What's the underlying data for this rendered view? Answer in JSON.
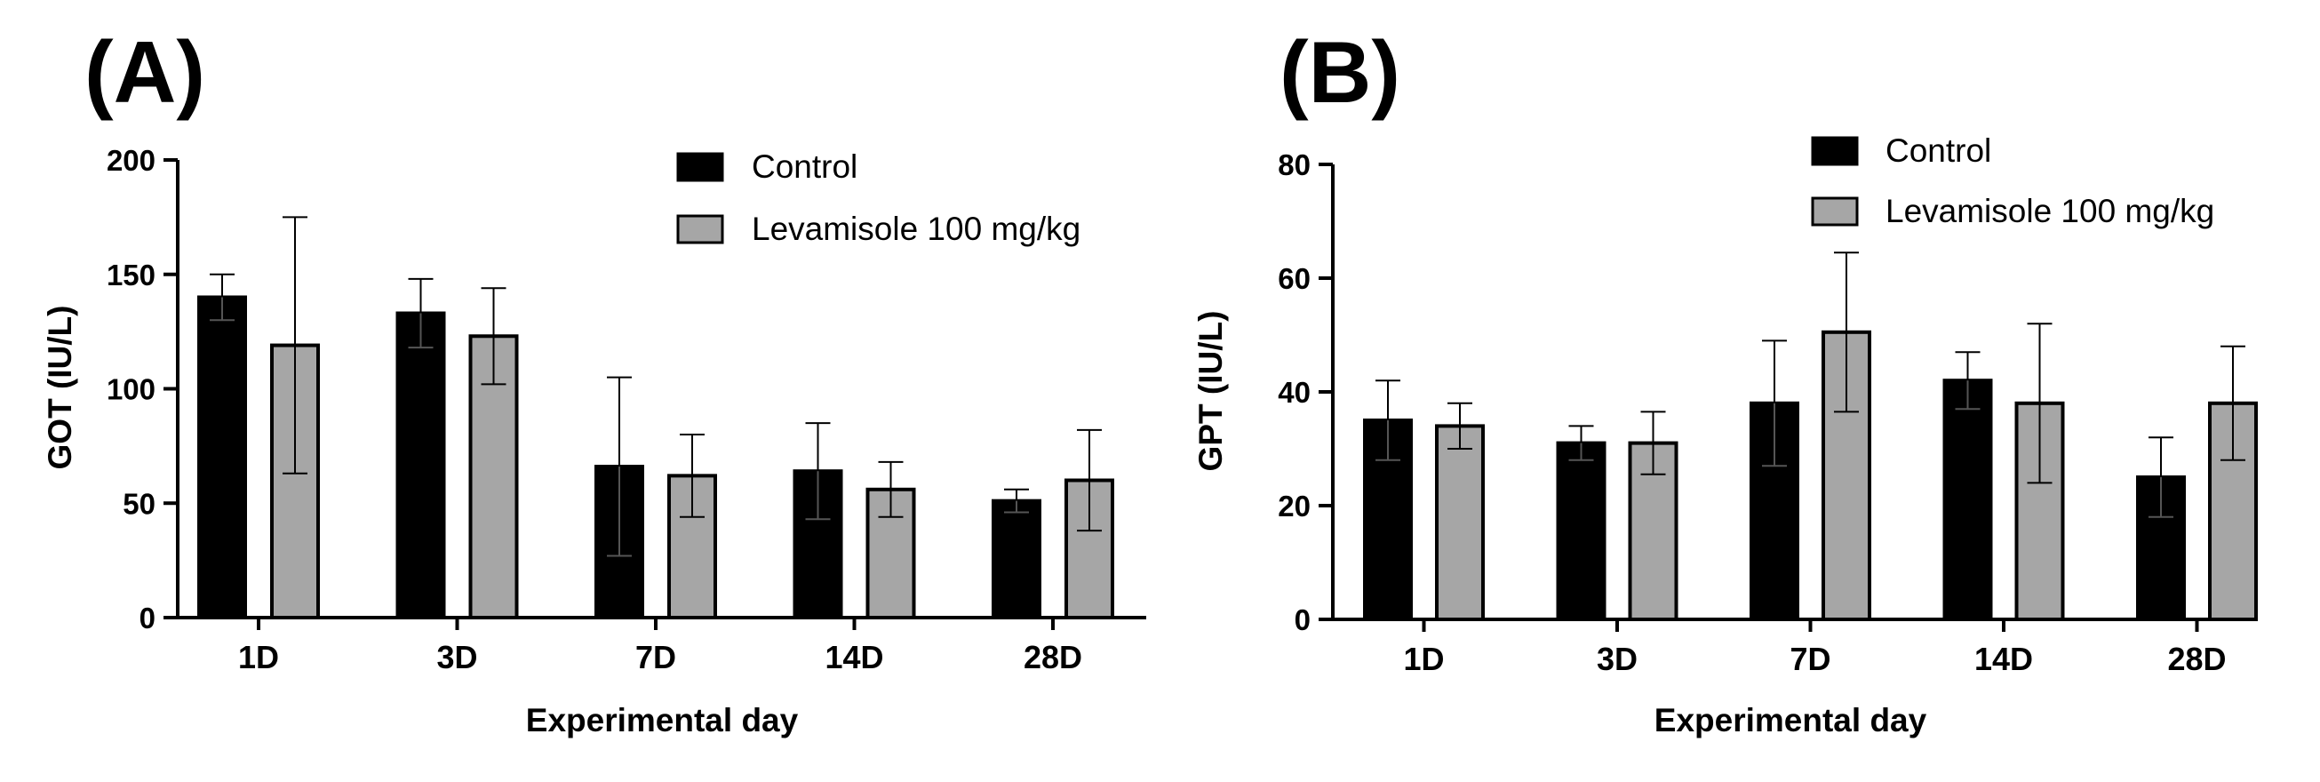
{
  "chart_data": [
    {
      "type": "bar",
      "panel_label": "(A)",
      "categories": [
        "1D",
        "3D",
        "7D",
        "14D",
        "28D"
      ],
      "xlabel": "Experimental day",
      "ylabel": "GOT (IU/L)",
      "ylim": [
        0,
        200
      ],
      "yticks": [
        "0",
        "50",
        "100",
        "150",
        "200"
      ],
      "series": [
        {
          "name": "Control",
          "color": "#000000",
          "values": [
            140,
            133,
            66,
            64,
            51
          ],
          "errors": [
            10,
            15,
            39,
            21,
            5
          ]
        },
        {
          "name": "Levamisole 100 mg/kg",
          "color": "#a6a6a6",
          "values": [
            119,
            123,
            62,
            56,
            60
          ],
          "errors": [
            56,
            21,
            18,
            12,
            22
          ]
        }
      ],
      "legend": "top-right",
      "grid": false
    },
    {
      "type": "bar",
      "panel_label": "(B)",
      "categories": [
        "1D",
        "3D",
        "7D",
        "14D",
        "28D"
      ],
      "xlabel": "Experimental day",
      "ylabel": "GPT (IU/L)",
      "ylim": [
        0,
        80
      ],
      "yticks": [
        "0",
        "20",
        "40",
        "60",
        "80"
      ],
      "series": [
        {
          "name": "Control",
          "color": "#000000",
          "values": [
            35,
            31,
            38,
            42,
            25
          ],
          "errors": [
            7,
            3,
            11,
            5,
            7
          ]
        },
        {
          "name": "Levamisole 100 mg/kg",
          "color": "#a6a6a6",
          "values": [
            34,
            31,
            50.5,
            38,
            38
          ],
          "errors": [
            4,
            5.5,
            14,
            14,
            10
          ]
        }
      ],
      "legend": "top-right",
      "grid": false
    }
  ]
}
